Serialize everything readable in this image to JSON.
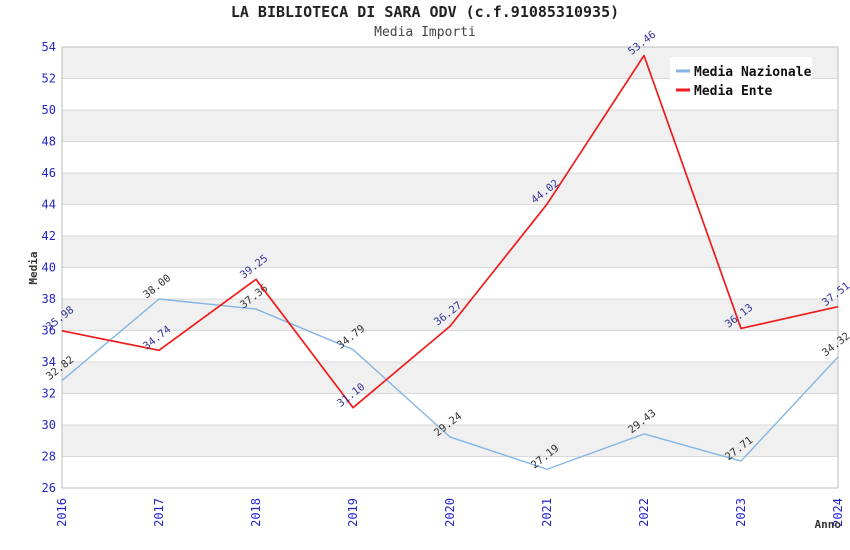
{
  "title": "LA BIBLIOTECA DI SARA ODV (c.f.91085310935)",
  "subtitle": "Media Importi",
  "chart_data": {
    "type": "line",
    "x": [
      "2016",
      "2017",
      "2018",
      "2019",
      "2020",
      "2021",
      "2022",
      "2023",
      "2024"
    ],
    "series": [
      {
        "name": "Media Nazionale",
        "color": "#85b5e5",
        "label_color": "#333333",
        "line_width": 1.4,
        "values": [
          32.82,
          38.0,
          37.36,
          34.79,
          29.24,
          27.19,
          29.43,
          27.71,
          34.32
        ]
      },
      {
        "name": "Media Ente",
        "color": "#ee1c1c",
        "label_color": "#333399",
        "line_width": 1.7,
        "values": [
          35.98,
          34.74,
          39.25,
          31.1,
          36.27,
          44.02,
          53.46,
          36.13,
          37.51
        ]
      }
    ],
    "xlabel": "Anno",
    "ylabel": "Media",
    "ylim": [
      26,
      54
    ],
    "ytick_step": 2,
    "yticks": [
      26,
      28,
      30,
      32,
      34,
      36,
      38,
      40,
      42,
      44,
      46,
      48,
      50,
      52,
      54
    ],
    "grid": "horizontal-bands",
    "legend_position": "top-right",
    "colors": {
      "tick_label": "#2424cc",
      "title": "#222222",
      "subtitle": "#444444",
      "axis_title": "#333333",
      "legend_text": "#111111",
      "band": "#f0f0f0",
      "gridline": "#d8d8d8",
      "plot_border": "#bdbdbd",
      "legend_bg": "#ffffff"
    }
  }
}
